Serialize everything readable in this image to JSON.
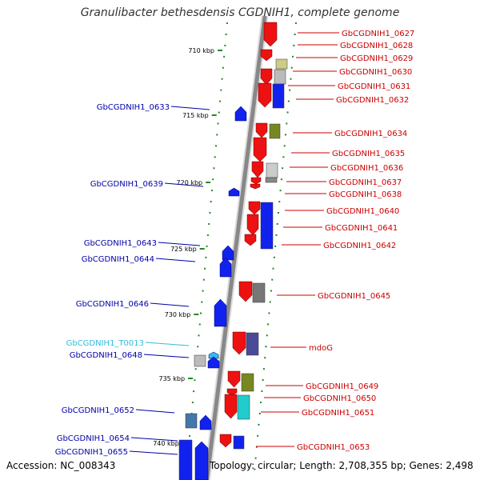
{
  "title": "Granulibacter bethesdensis CGDNIH1, complete genome",
  "accession": "Accession: NC_008343",
  "stats": "Topology: circular; Length: 2,708,355 bp; Genes: 2,498",
  "colors": {
    "forward_label": "#cc0000",
    "reverse_label": "#0000aa",
    "rna_label": "#33bbdd",
    "backbone": "#888888",
    "tick": "#228822"
  },
  "scale_ticks": [
    "710 kbp",
    "715 kbp",
    "720 kbp",
    "725 kbp",
    "730 kbp",
    "735 kbp",
    "740 kbp"
  ],
  "right_labels": [
    "GbCGDNIH1_0627",
    "GbCGDNIH1_0628",
    "GbCGDNIH1_0629",
    "GbCGDNIH1_0630",
    "GbCGDNIH1_0631",
    "GbCGDNIH1_0632",
    "GbCGDNIH1_0634",
    "GbCGDNIH1_0635",
    "GbCGDNIH1_0636",
    "GbCGDNIH1_0637",
    "GbCGDNIH1_0638",
    "GbCGDNIH1_0640",
    "GbCGDNIH1_0641",
    "GbCGDNIH1_0642",
    "GbCGDNIH1_0645",
    "mdoG",
    "GbCGDNIH1_0649",
    "GbCGDNIH1_0650",
    "GbCGDNIH1_0651",
    "GbCGDNIH1_0653"
  ],
  "left_labels": [
    "GbCGDNIH1_0633",
    "GbCGDNIH1_0639",
    "GbCGDNIH1_0643",
    "GbCGDNIH1_0644",
    "GbCGDNIH1_0646",
    "GbCGDNIH1_T0013",
    "GbCGDNIH1_0648",
    "GbCGDNIH1_0652",
    "GbCGDNIH1_0654",
    "GbCGDNIH1_0655"
  ]
}
